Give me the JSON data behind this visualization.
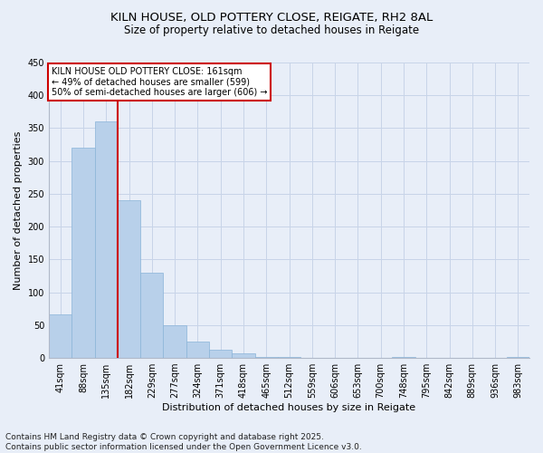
{
  "title_line1": "KILN HOUSE, OLD POTTERY CLOSE, REIGATE, RH2 8AL",
  "title_line2": "Size of property relative to detached houses in Reigate",
  "xlabel": "Distribution of detached houses by size in Reigate",
  "ylabel": "Number of detached properties",
  "categories": [
    "41sqm",
    "88sqm",
    "135sqm",
    "182sqm",
    "229sqm",
    "277sqm",
    "324sqm",
    "371sqm",
    "418sqm",
    "465sqm",
    "512sqm",
    "559sqm",
    "606sqm",
    "653sqm",
    "700sqm",
    "748sqm",
    "795sqm",
    "842sqm",
    "889sqm",
    "936sqm",
    "983sqm"
  ],
  "values": [
    67,
    320,
    360,
    240,
    130,
    50,
    25,
    12,
    7,
    2,
    1,
    0,
    0,
    0,
    0,
    2,
    0,
    0,
    0,
    0,
    2
  ],
  "bar_color": "#b8d0ea",
  "bar_edge_color": "#8ab4d8",
  "grid_color": "#c8d4e8",
  "background_color": "#e8eef8",
  "vline_x": 2.5,
  "vline_color": "#cc0000",
  "annotation_line1": "KILN HOUSE OLD POTTERY CLOSE: 161sqm",
  "annotation_line2": "← 49% of detached houses are smaller (599)",
  "annotation_line3": "50% of semi-detached houses are larger (606) →",
  "annotation_box_color": "#ffffff",
  "annotation_box_edge": "#cc0000",
  "ylim": [
    0,
    450
  ],
  "yticks": [
    0,
    50,
    100,
    150,
    200,
    250,
    300,
    350,
    400,
    450
  ],
  "footer_line1": "Contains HM Land Registry data © Crown copyright and database right 2025.",
  "footer_line2": "Contains public sector information licensed under the Open Government Licence v3.0.",
  "title_fontsize": 9.5,
  "subtitle_fontsize": 8.5,
  "axis_label_fontsize": 8,
  "tick_fontsize": 7,
  "annotation_fontsize": 7,
  "footer_fontsize": 6.5
}
